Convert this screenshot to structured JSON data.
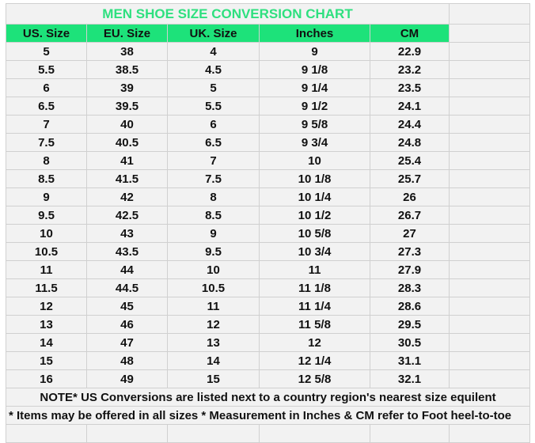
{
  "title": "MEN SHOE SIZE CONVERSION CHART",
  "colors": {
    "header_bg": "#1de27a",
    "title_text": "#2ee07f",
    "cell_bg": "#f2f2f2"
  },
  "headers": [
    "US. Size",
    "EU. Size",
    "UK. Size",
    "Inches",
    "CM"
  ],
  "rows": [
    [
      "5",
      "38",
      "4",
      "9",
      "22.9"
    ],
    [
      "5.5",
      "38.5",
      "4.5",
      "9 1/8",
      "23.2"
    ],
    [
      "6",
      "39",
      "5",
      "9 1/4",
      "23.5"
    ],
    [
      "6.5",
      "39.5",
      "5.5",
      "9 1/2",
      "24.1"
    ],
    [
      "7",
      "40",
      "6",
      "9 5/8",
      "24.4"
    ],
    [
      "7.5",
      "40.5",
      "6.5",
      "9 3/4",
      "24.8"
    ],
    [
      "8",
      "41",
      "7",
      "10",
      "25.4"
    ],
    [
      "8.5",
      "41.5",
      "7.5",
      "10 1/8",
      "25.7"
    ],
    [
      "9",
      "42",
      "8",
      "10 1/4",
      "26"
    ],
    [
      "9.5",
      "42.5",
      "8.5",
      "10 1/2",
      "26.7"
    ],
    [
      "10",
      "43",
      "9",
      "10 5/8",
      "27"
    ],
    [
      "10.5",
      "43.5",
      "9.5",
      "10 3/4",
      "27.3"
    ],
    [
      "11",
      "44",
      "10",
      "11",
      "27.9"
    ],
    [
      "11.5",
      "44.5",
      "10.5",
      "11 1/8",
      "28.3"
    ],
    [
      "12",
      "45",
      "11",
      "11 1/4",
      "28.6"
    ],
    [
      "13",
      "46",
      "12",
      "11 5/8",
      "29.5"
    ],
    [
      "14",
      "47",
      "13",
      "12",
      "30.5"
    ],
    [
      "15",
      "48",
      "14",
      "12 1/4",
      "31.1"
    ],
    [
      "16",
      "49",
      "15",
      "12 5/8",
      "32.1"
    ]
  ],
  "note1": "NOTE* US Conversions are listed next to a country region's nearest size equilent",
  "note2": "* Items may be offered in all sizes * Measurement in Inches & CM refer to Foot heel-to-toe"
}
